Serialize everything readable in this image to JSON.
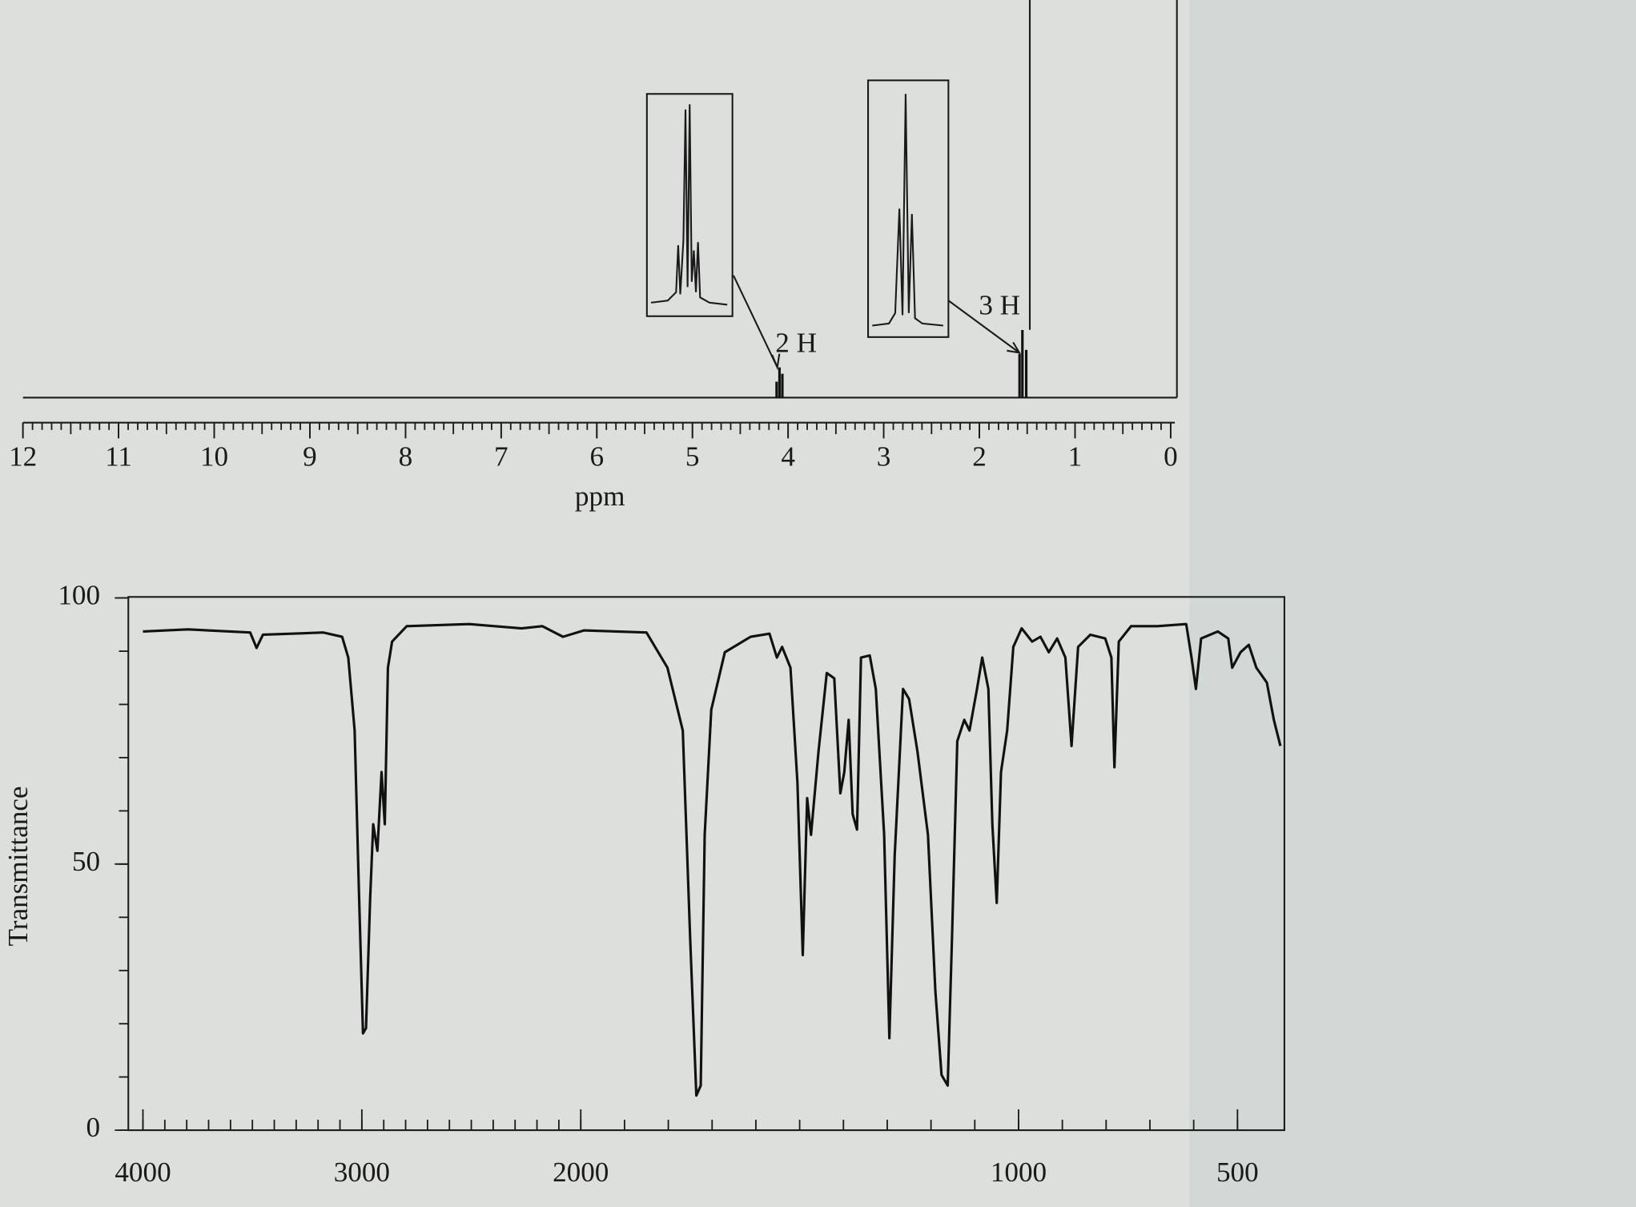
{
  "chart_data": [
    {
      "type": "stem",
      "xlabel": "ppm",
      "xlim": [
        12,
        0
      ],
      "xticks": [
        12,
        11,
        10,
        9,
        8,
        7,
        6,
        5,
        4,
        3,
        2,
        1,
        0
      ],
      "ylim": [
        0,
        100
      ],
      "x": [
        4.12,
        4.09,
        4.06,
        1.58,
        1.55,
        1.51
      ],
      "values": [
        4,
        7.6,
        6,
        11,
        17,
        12
      ],
      "annotations": [
        "2 H",
        "3 H"
      ],
      "color": "#111111"
    },
    {
      "type": "line",
      "ylabel": "Transmittance",
      "xlim": [
        4000,
        400
      ],
      "xticks": [
        4000,
        3000,
        2000,
        1000,
        500
      ],
      "ylim": [
        0,
        100
      ],
      "yticks": [
        0,
        50,
        100
      ],
      "color": "#111111",
      "x": [
        4000,
        3795,
        3510,
        3481,
        3452,
        3176,
        3090,
        3062,
        3033,
        3014,
        2995,
        2981,
        2962,
        2948,
        2929,
        2910,
        2895,
        2881,
        2862,
        2795,
        2510,
        2271,
        2176,
        2081,
        1993,
        1850,
        1802,
        1767,
        1750,
        1736,
        1726,
        1717,
        1702,
        1671,
        1612,
        1569,
        1552,
        1540,
        1521,
        1505,
        1493,
        1483,
        1474,
        1457,
        1438,
        1421,
        1407,
        1398,
        1388,
        1379,
        1369,
        1360,
        1340,
        1326,
        1307,
        1295,
        1283,
        1264,
        1250,
        1231,
        1207,
        1190,
        1176,
        1162,
        1152,
        1140,
        1124,
        1112,
        1095,
        1083,
        1069,
        1060,
        1050,
        1040,
        1026,
        1012,
        993,
        969,
        950,
        931,
        912,
        893,
        879,
        864,
        836,
        802,
        788,
        781,
        771,
        743,
        683,
        617,
        605,
        595,
        583,
        545,
        521,
        512,
        493,
        474,
        457,
        433,
        417,
        402
      ],
      "values": [
        93.7,
        94.1,
        93.5,
        90.6,
        93.1,
        93.5,
        92.7,
        88.8,
        75.1,
        45.7,
        18.2,
        19.2,
        43.7,
        57.5,
        52.5,
        67.3,
        57.5,
        86.9,
        91.8,
        94.7,
        95.1,
        94.3,
        94.7,
        92.7,
        93.9,
        93.5,
        86.9,
        75.1,
        35.9,
        6.5,
        8.4,
        55.5,
        79,
        89.8,
        92.7,
        93.3,
        88.8,
        90.8,
        86.9,
        65.3,
        32.9,
        62.4,
        55.5,
        71.2,
        85.9,
        84.9,
        63.3,
        67.3,
        77.1,
        59.4,
        56.5,
        88.8,
        89.2,
        82.9,
        55.5,
        17.3,
        51.6,
        82.9,
        81,
        71.2,
        55.5,
        26.1,
        10.4,
        8.4,
        35.9,
        73.1,
        77.1,
        75.1,
        82.9,
        88.8,
        82.9,
        57.5,
        42.7,
        67.3,
        75.1,
        90.8,
        94.3,
        91.8,
        92.7,
        89.8,
        92.4,
        88.8,
        72.2,
        90.8,
        93.1,
        92.4,
        88.8,
        68.2,
        91.8,
        94.7,
        94.7,
        95.1,
        88.8,
        82.9,
        92.4,
        93.7,
        92.4,
        86.9,
        89.8,
        91.2,
        86.9,
        84.1,
        77.1,
        72.2
      ]
    }
  ]
}
